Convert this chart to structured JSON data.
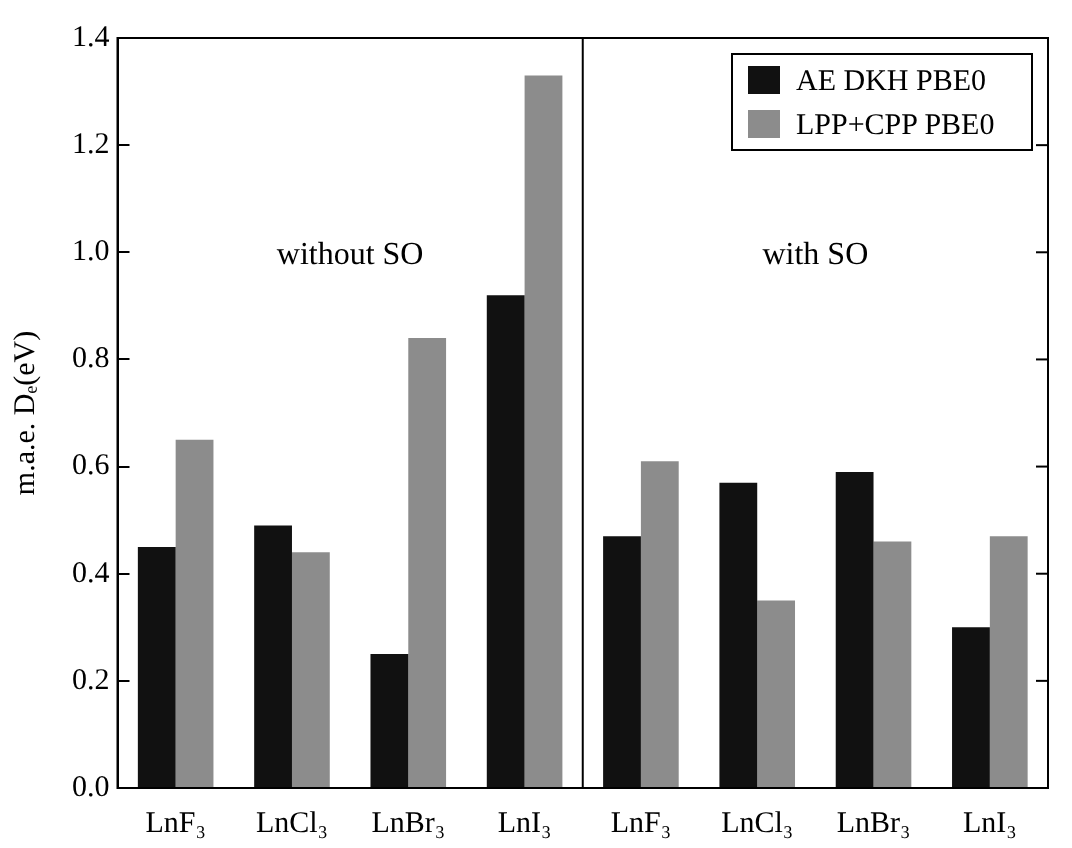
{
  "chart_data": {
    "type": "bar",
    "ylabel": "m.a.e. Dₑ(eV)",
    "categories": [
      "LnF₃",
      "LnCl₃",
      "LnBr₃",
      "LnI₃",
      "LnF₃",
      "LnCl₃",
      "LnBr₃",
      "LnI₃"
    ],
    "series": [
      {
        "name": "AE DKH PBE0",
        "color": "#111111",
        "values": [
          0.45,
          0.49,
          0.25,
          0.92,
          0.47,
          0.57,
          0.59,
          0.3
        ]
      },
      {
        "name": "LPP+CPP PBE0",
        "color": "#8c8c8c",
        "values": [
          0.65,
          0.44,
          0.84,
          1.33,
          0.61,
          0.35,
          0.46,
          0.47
        ]
      }
    ],
    "ylim": [
      0,
      1.4
    ],
    "yticks": [
      {
        "value": 0,
        "label": "0.0"
      },
      0.2,
      0.4,
      0.6,
      0.8,
      {
        "value": 1,
        "label": "1.0"
      },
      1.2,
      1.4
    ],
    "annotations": [
      "without SO",
      "with SO"
    ],
    "grid": false,
    "legend": "top right"
  }
}
